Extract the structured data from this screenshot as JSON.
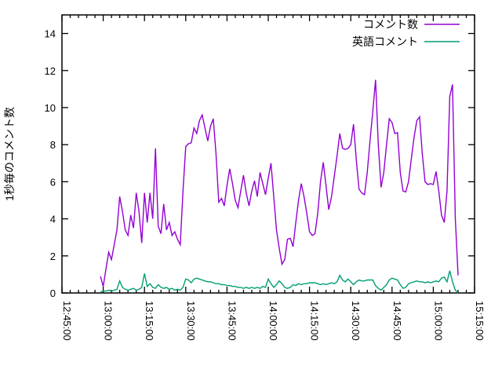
{
  "chart_data": {
    "type": "line",
    "title": "",
    "xlabel": "",
    "ylabel": "1秒毎のコメント数",
    "grid": false,
    "legend_position": "top-right-inside",
    "x_axis": {
      "start": "12:45:00",
      "end": "15:15:00",
      "major_tick_interval_minutes": 15,
      "minor_tick_interval_minutes": 3,
      "tick_labels": [
        "12:45:00",
        "13:00:00",
        "13:15:00",
        "13:30:00",
        "13:45:00",
        "14:00:00",
        "14:15:00",
        "14:30:00",
        "14:45:00",
        "15:00:00",
        "15:15:00"
      ],
      "label_rotation_degrees": 90
    },
    "y_axis": {
      "min": 0,
      "max": 15,
      "tick_step": 2,
      "tick_labels": [
        "0",
        "2",
        "4",
        "6",
        "8",
        "10",
        "12",
        "14"
      ]
    },
    "x_unit": "minutes since 12:45:00 (points sampled about every minute)",
    "series": [
      {
        "name": "コメント数",
        "color": "#9400d3",
        "points": [
          [
            14,
            0.9
          ],
          [
            15,
            0.35
          ],
          [
            16,
            1.3
          ],
          [
            17,
            2.2
          ],
          [
            18,
            1.8
          ],
          [
            19,
            2.6
          ],
          [
            20,
            3.4
          ],
          [
            21,
            5.2
          ],
          [
            22,
            4.4
          ],
          [
            23,
            3.4
          ],
          [
            24,
            3.1
          ],
          [
            25,
            4.2
          ],
          [
            26,
            3.5
          ],
          [
            27,
            5.4
          ],
          [
            28,
            4.4
          ],
          [
            29,
            2.7
          ],
          [
            30,
            5.4
          ],
          [
            31,
            3.8
          ],
          [
            32,
            5.4
          ],
          [
            33,
            4.0
          ],
          [
            34,
            7.8
          ],
          [
            35,
            3.6
          ],
          [
            36,
            3.2
          ],
          [
            37,
            4.8
          ],
          [
            38,
            3.4
          ],
          [
            39,
            3.8
          ],
          [
            40,
            3.1
          ],
          [
            41,
            3.3
          ],
          [
            42,
            2.9
          ],
          [
            43,
            2.6
          ],
          [
            44,
            5.5
          ],
          [
            45,
            7.9
          ],
          [
            46,
            8.05
          ],
          [
            47,
            8.1
          ],
          [
            48,
            8.9
          ],
          [
            49,
            8.6
          ],
          [
            50,
            9.3
          ],
          [
            51,
            9.6
          ],
          [
            52,
            8.9
          ],
          [
            53,
            8.2
          ],
          [
            54,
            9.0
          ],
          [
            55,
            9.4
          ],
          [
            56,
            7.5
          ],
          [
            57,
            4.9
          ],
          [
            58,
            5.1
          ],
          [
            59,
            4.7
          ],
          [
            60,
            5.8
          ],
          [
            61,
            6.7
          ],
          [
            62,
            5.9
          ],
          [
            63,
            5.0
          ],
          [
            64,
            4.6
          ],
          [
            65,
            5.5
          ],
          [
            66,
            6.35
          ],
          [
            67,
            5.4
          ],
          [
            68,
            4.7
          ],
          [
            69,
            5.5
          ],
          [
            70,
            6.05
          ],
          [
            71,
            5.2
          ],
          [
            72,
            6.5
          ],
          [
            73,
            5.9
          ],
          [
            74,
            5.3
          ],
          [
            75,
            6.2
          ],
          [
            76,
            7.0
          ],
          [
            77,
            5.2
          ],
          [
            78,
            3.4
          ],
          [
            79,
            2.4
          ],
          [
            80,
            1.55
          ],
          [
            81,
            1.8
          ],
          [
            82,
            2.9
          ],
          [
            83,
            2.95
          ],
          [
            84,
            2.5
          ],
          [
            85,
            3.8
          ],
          [
            86,
            5.0
          ],
          [
            87,
            5.9
          ],
          [
            88,
            5.2
          ],
          [
            89,
            4.3
          ],
          [
            90,
            3.3
          ],
          [
            91,
            3.1
          ],
          [
            92,
            3.2
          ],
          [
            93,
            4.3
          ],
          [
            94,
            6.0
          ],
          [
            95,
            7.05
          ],
          [
            96,
            5.8
          ],
          [
            97,
            4.5
          ],
          [
            98,
            5.2
          ],
          [
            99,
            6.3
          ],
          [
            100,
            7.4
          ],
          [
            101,
            8.6
          ],
          [
            102,
            7.8
          ],
          [
            103,
            7.75
          ],
          [
            104,
            7.8
          ],
          [
            105,
            8.0
          ],
          [
            106,
            9.1
          ],
          [
            107,
            7.2
          ],
          [
            108,
            5.6
          ],
          [
            109,
            5.4
          ],
          [
            110,
            5.3
          ],
          [
            111,
            6.5
          ],
          [
            112,
            8.2
          ],
          [
            113,
            9.8
          ],
          [
            114,
            11.5
          ],
          [
            115,
            8.0
          ],
          [
            116,
            5.7
          ],
          [
            117,
            6.5
          ],
          [
            118,
            8.0
          ],
          [
            119,
            9.4
          ],
          [
            120,
            9.2
          ],
          [
            121,
            8.6
          ],
          [
            122,
            8.65
          ],
          [
            123,
            6.5
          ],
          [
            124,
            5.5
          ],
          [
            125,
            5.45
          ],
          [
            126,
            6.0
          ],
          [
            127,
            7.2
          ],
          [
            128,
            8.4
          ],
          [
            129,
            9.3
          ],
          [
            130,
            9.5
          ],
          [
            131,
            7.5
          ],
          [
            132,
            6.0
          ],
          [
            133,
            5.85
          ],
          [
            134,
            5.9
          ],
          [
            135,
            5.85
          ],
          [
            136,
            6.55
          ],
          [
            137,
            5.5
          ],
          [
            138,
            4.2
          ],
          [
            139,
            3.8
          ],
          [
            140,
            5.5
          ],
          [
            141,
            10.6
          ],
          [
            142,
            11.25
          ],
          [
            143,
            4.0
          ],
          [
            144,
            0.95
          ]
        ]
      },
      {
        "name": "英語コメント",
        "color": "#009e73",
        "points": [
          [
            14,
            0.05
          ],
          [
            15,
            0.1
          ],
          [
            16,
            0.1
          ],
          [
            17,
            0.15
          ],
          [
            18,
            0.1
          ],
          [
            19,
            0.15
          ],
          [
            20,
            0.2
          ],
          [
            21,
            0.65
          ],
          [
            22,
            0.3
          ],
          [
            23,
            0.2
          ],
          [
            24,
            0.15
          ],
          [
            25,
            0.2
          ],
          [
            26,
            0.25
          ],
          [
            27,
            0.15
          ],
          [
            28,
            0.2
          ],
          [
            29,
            0.3
          ],
          [
            30,
            1.05
          ],
          [
            31,
            0.35
          ],
          [
            32,
            0.5
          ],
          [
            33,
            0.3
          ],
          [
            34,
            0.25
          ],
          [
            35,
            0.45
          ],
          [
            36,
            0.3
          ],
          [
            37,
            0.25
          ],
          [
            38,
            0.3
          ],
          [
            39,
            0.2
          ],
          [
            40,
            0.25
          ],
          [
            41,
            0.15
          ],
          [
            42,
            0.2
          ],
          [
            43,
            0.15
          ],
          [
            44,
            0.3
          ],
          [
            45,
            0.75
          ],
          [
            46,
            0.7
          ],
          [
            47,
            0.55
          ],
          [
            48,
            0.75
          ],
          [
            49,
            0.8
          ],
          [
            50,
            0.75
          ],
          [
            51,
            0.7
          ],
          [
            52,
            0.65
          ],
          [
            53,
            0.6
          ],
          [
            54,
            0.6
          ],
          [
            55,
            0.55
          ],
          [
            56,
            0.5
          ],
          [
            57,
            0.5
          ],
          [
            58,
            0.45
          ],
          [
            59,
            0.45
          ],
          [
            60,
            0.4
          ],
          [
            61,
            0.4
          ],
          [
            62,
            0.35
          ],
          [
            63,
            0.35
          ],
          [
            64,
            0.3
          ],
          [
            65,
            0.3
          ],
          [
            66,
            0.25
          ],
          [
            67,
            0.3
          ],
          [
            68,
            0.25
          ],
          [
            69,
            0.3
          ],
          [
            70,
            0.25
          ],
          [
            71,
            0.3
          ],
          [
            72,
            0.25
          ],
          [
            73,
            0.35
          ],
          [
            74,
            0.3
          ],
          [
            75,
            0.75
          ],
          [
            76,
            0.5
          ],
          [
            77,
            0.3
          ],
          [
            78,
            0.45
          ],
          [
            79,
            0.65
          ],
          [
            80,
            0.5
          ],
          [
            81,
            0.3
          ],
          [
            82,
            0.25
          ],
          [
            83,
            0.3
          ],
          [
            84,
            0.45
          ],
          [
            85,
            0.4
          ],
          [
            86,
            0.5
          ],
          [
            87,
            0.45
          ],
          [
            88,
            0.5
          ],
          [
            89,
            0.5
          ],
          [
            90,
            0.55
          ],
          [
            91,
            0.55
          ],
          [
            92,
            0.55
          ],
          [
            93,
            0.5
          ],
          [
            94,
            0.45
          ],
          [
            95,
            0.5
          ],
          [
            96,
            0.45
          ],
          [
            97,
            0.5
          ],
          [
            98,
            0.55
          ],
          [
            99,
            0.5
          ],
          [
            100,
            0.6
          ],
          [
            101,
            0.95
          ],
          [
            102,
            0.7
          ],
          [
            103,
            0.6
          ],
          [
            104,
            0.75
          ],
          [
            105,
            0.6
          ],
          [
            106,
            0.45
          ],
          [
            107,
            0.6
          ],
          [
            108,
            0.7
          ],
          [
            109,
            0.65
          ],
          [
            110,
            0.65
          ],
          [
            111,
            0.7
          ],
          [
            112,
            0.7
          ],
          [
            113,
            0.7
          ],
          [
            114,
            0.4
          ],
          [
            115,
            0.25
          ],
          [
            116,
            0.15
          ],
          [
            117,
            0.3
          ],
          [
            118,
            0.45
          ],
          [
            119,
            0.7
          ],
          [
            120,
            0.8
          ],
          [
            121,
            0.75
          ],
          [
            122,
            0.7
          ],
          [
            123,
            0.45
          ],
          [
            124,
            0.25
          ],
          [
            125,
            0.3
          ],
          [
            126,
            0.5
          ],
          [
            127,
            0.55
          ],
          [
            128,
            0.6
          ],
          [
            129,
            0.65
          ],
          [
            130,
            0.6
          ],
          [
            131,
            0.6
          ],
          [
            132,
            0.55
          ],
          [
            133,
            0.6
          ],
          [
            134,
            0.55
          ],
          [
            135,
            0.6
          ],
          [
            136,
            0.65
          ],
          [
            137,
            0.6
          ],
          [
            138,
            0.8
          ],
          [
            139,
            0.85
          ],
          [
            140,
            0.6
          ],
          [
            141,
            1.2
          ],
          [
            142,
            0.6
          ],
          [
            143,
            0.15
          ],
          [
            144,
            0.0
          ]
        ]
      }
    ]
  }
}
